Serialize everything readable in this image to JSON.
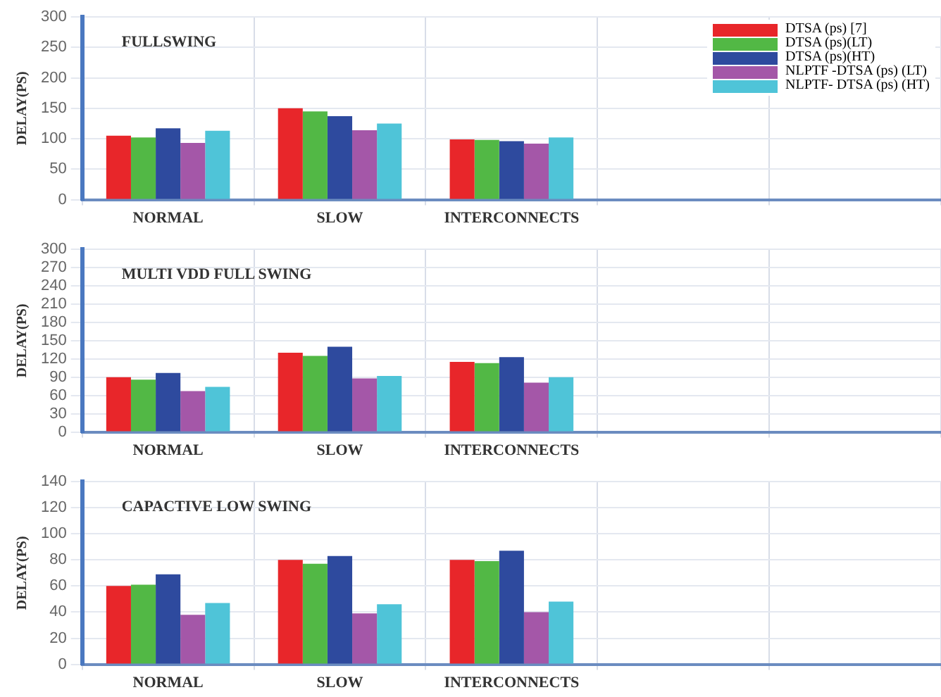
{
  "chart_data": [
    {
      "type": "bar",
      "title": "FULLSWING",
      "ylabel": "DELAY(PS)",
      "categories": [
        "NORMAL",
        "SLOW",
        "INTERCONNECTS",
        null,
        null
      ],
      "series": [
        {
          "name": "DTSA  (ps) [7]",
          "color": "#e8262a",
          "values": [
            105,
            150,
            99,
            null,
            null
          ]
        },
        {
          "name": "DTSA (ps)(LT)",
          "color": "#52b845",
          "values": [
            102,
            145,
            98,
            null,
            null
          ]
        },
        {
          "name": "DTSA (ps)(HT)",
          "color": "#2e4a9e",
          "values": [
            117,
            137,
            96,
            null,
            null
          ]
        },
        {
          "name": "NLPTF -DTSA (ps) (LT)",
          "color": "#a457a8",
          "values": [
            93,
            114,
            92,
            null,
            null
          ]
        },
        {
          "name": "NLPTF- DTSA (ps) (HT)",
          "color": "#4fc4d8",
          "values": [
            113,
            125,
            102,
            null,
            null
          ]
        }
      ],
      "ylim": [
        0,
        300
      ],
      "yticks": [
        0,
        50,
        100,
        150,
        200,
        250,
        300
      ],
      "grid": true,
      "legend": "top right"
    },
    {
      "type": "bar",
      "title": "MULTI VDD FULL SWING",
      "ylabel": "DELAY(PS)",
      "categories": [
        "NORMAL",
        "SLOW",
        "INTERCONNECTS",
        null,
        null
      ],
      "series": [
        {
          "color": "#e8262a",
          "values": [
            90,
            130,
            115,
            null,
            null
          ]
        },
        {
          "color": "#52b845",
          "values": [
            86,
            125,
            113,
            null,
            null
          ]
        },
        {
          "color": "#2e4a9e",
          "values": [
            97,
            140,
            123,
            null,
            null
          ]
        },
        {
          "color": "#a457a8",
          "values": [
            67,
            88,
            81,
            null,
            null
          ]
        },
        {
          "color": "#4fc4d8",
          "values": [
            74,
            92,
            90,
            null,
            null
          ]
        }
      ],
      "ylim": [
        0,
        300
      ],
      "yticks": [
        0,
        30,
        60,
        90,
        120,
        150,
        180,
        210,
        240,
        270,
        300
      ],
      "grid": true
    },
    {
      "type": "bar",
      "title": "CAPACTIVE LOW SWING",
      "ylabel": "DELAY(PS)",
      "categories": [
        "NORMAL",
        "SLOW",
        "INTERCONNECTS",
        null,
        null
      ],
      "series": [
        {
          "color": "#e8262a",
          "values": [
            60,
            80,
            80,
            null,
            null
          ]
        },
        {
          "color": "#52b845",
          "values": [
            61,
            77,
            79,
            null,
            null
          ]
        },
        {
          "color": "#2e4a9e",
          "values": [
            69,
            83,
            87,
            null,
            null
          ]
        },
        {
          "color": "#a457a8",
          "values": [
            38,
            39,
            40,
            null,
            null
          ]
        },
        {
          "color": "#4fc4d8",
          "values": [
            47,
            46,
            48,
            null,
            null
          ]
        }
      ],
      "ylim": [
        0,
        140
      ],
      "yticks": [
        0,
        20,
        40,
        60,
        80,
        100,
        120,
        140
      ],
      "grid": true
    }
  ]
}
